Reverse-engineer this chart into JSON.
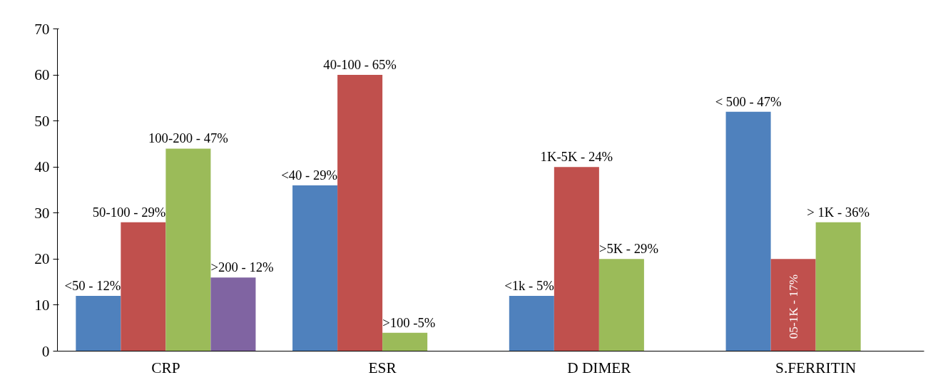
{
  "chart_data": {
    "type": "bar",
    "categories": [
      "CRP",
      "ESR",
      "D DIMER",
      "S.FERRITIN"
    ],
    "series": [
      {
        "color": "#4f81bd",
        "values": [
          12,
          36,
          12,
          52
        ]
      },
      {
        "color": "#c0504d",
        "values": [
          28,
          60,
          40,
          20
        ]
      },
      {
        "color": "#9bbb59",
        "values": [
          44,
          4,
          20,
          28
        ]
      },
      {
        "color": "#8064a2",
        "values": [
          16,
          null,
          null,
          null
        ]
      }
    ],
    "annotations": [
      "<50 - 12%",
      "50-100 - 29%",
      "100-200 - 47%",
      ">200 - 12%",
      "<40 - 29%",
      "40-100 - 65%",
      ">100 -5%",
      "<1k - 5%",
      "1K-5K - 24%",
      ">5K - 29%",
      "< 500 - 47%",
      "05-1K  - 17%",
      "> 1K - 36%"
    ],
    "ylim": [
      0,
      70
    ],
    "yticks": [
      0,
      10,
      20,
      30,
      40,
      50,
      60,
      70
    ]
  }
}
